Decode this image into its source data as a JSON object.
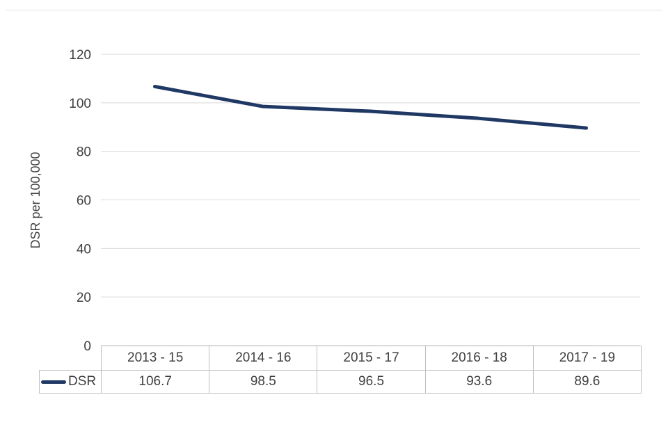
{
  "chart_data": {
    "type": "line",
    "ylabel": "DSR per 100,000",
    "categories": [
      "2013 - 15",
      "2014 - 16",
      "2015 - 17",
      "2016 - 18",
      "2017 - 19"
    ],
    "series": [
      {
        "name": "DSR",
        "values": [
          106.7,
          98.5,
          96.5,
          93.6,
          89.6
        ]
      }
    ],
    "ylim": [
      0,
      120
    ],
    "yticks": [
      0,
      20,
      40,
      60,
      80,
      100,
      120
    ],
    "grid": "horizontal",
    "legend_position": "table-left",
    "line_color": "#1f3864",
    "gridline_color": "#d9d9d9",
    "table_border_color": "#bfbfbf",
    "text_color": "#404040"
  }
}
